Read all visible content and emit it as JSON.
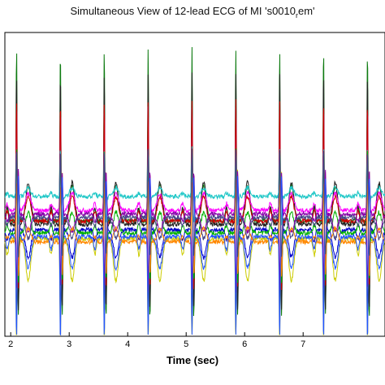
{
  "chart_data": {
    "type": "line",
    "title_main": "Simultaneous View of 12-lead ECG of MI 's0010",
    "title_sub": "r",
    "title_end": "em'",
    "xlabel": "Time (sec)",
    "ylabel": "",
    "xlim": [
      1.9,
      8.4
    ],
    "xticks": [
      "2",
      "3",
      "4",
      "5",
      "6",
      "7"
    ],
    "grid": false,
    "beat_times": [
      2.1,
      2.85,
      3.6,
      4.35,
      5.1,
      5.85,
      6.6,
      7.35,
      8.1
    ],
    "series": [
      {
        "color": "#0d7a10",
        "amplitude": 1.0,
        "baseline": 0.0,
        "t_amp": 0.2
      },
      {
        "color": "#222222",
        "amplitude": 0.88,
        "baseline": -0.02,
        "t_amp": 0.24
      },
      {
        "color": "#ff00ff",
        "amplitude": 0.6,
        "baseline": 0.06,
        "t_amp": 0.1
      },
      {
        "color": "#cc0000",
        "amplitude": 0.7,
        "baseline": 0.0,
        "t_amp": 0.14
      },
      {
        "color": "#0000cc",
        "amplitude": -0.55,
        "baseline": -0.05,
        "t_amp": -0.16
      },
      {
        "color": "#1fc7c7",
        "amplitude": 0.28,
        "baseline": 0.14,
        "t_amp": 0.05
      },
      {
        "color": "#cccc00",
        "amplitude": -0.7,
        "baseline": -0.1,
        "t_amp": -0.24
      },
      {
        "color": "#00b000",
        "amplitude": 0.5,
        "baseline": -0.07,
        "t_amp": 0.12
      },
      {
        "color": "#8800aa",
        "amplitude": -0.45,
        "baseline": 0.04,
        "t_amp": -0.1
      },
      {
        "color": "#ff8800",
        "amplitude": 0.35,
        "baseline": -0.12,
        "t_amp": 0.08
      },
      {
        "color": "#2255ff",
        "amplitude": -0.62,
        "baseline": -0.09,
        "t_amp": -0.18
      },
      {
        "color": "#444488",
        "amplitude": 0.4,
        "baseline": 0.02,
        "t_amp": -0.12
      }
    ]
  }
}
